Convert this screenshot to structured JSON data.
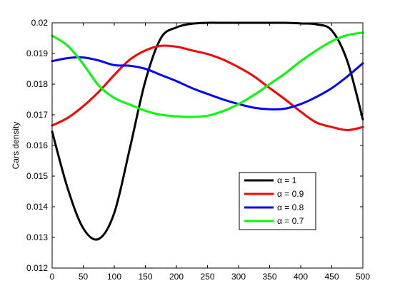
{
  "chart_data": {
    "type": "line",
    "title": "",
    "xlabel": "",
    "ylabel": "Cars density",
    "xlim": [
      0,
      500
    ],
    "ylim": [
      0.012,
      0.02
    ],
    "x_ticks": [
      0,
      50,
      100,
      150,
      200,
      250,
      300,
      350,
      400,
      450,
      500
    ],
    "x_tick_labels": [
      "0",
      "50",
      "100",
      "150",
      "200",
      "250",
      "300",
      "350",
      "400",
      "450",
      "500"
    ],
    "y_ticks": [
      0.012,
      0.013,
      0.014,
      0.015,
      0.016,
      0.017,
      0.018,
      0.019,
      0.02
    ],
    "y_tick_labels": [
      "0.012",
      "0.013",
      "0.014",
      "0.015",
      "0.016",
      "0.017",
      "0.018",
      "0.019",
      "0.02"
    ],
    "grid": false,
    "legend_position": "center-right",
    "x": [
      0,
      25,
      50,
      75,
      100,
      125,
      150,
      175,
      200,
      225,
      250,
      275,
      300,
      325,
      350,
      375,
      400,
      425,
      450,
      475,
      500
    ],
    "series": [
      {
        "name": "α = 1",
        "color": "#000000",
        "values": [
          0.01645,
          0.0146,
          0.0133,
          0.01295,
          0.0138,
          0.0159,
          0.0181,
          0.0195,
          0.01985,
          0.01997,
          0.02,
          0.02,
          0.02,
          0.02,
          0.02,
          0.02,
          0.01998,
          0.01995,
          0.01975,
          0.01875,
          0.01685
        ]
      },
      {
        "name": "α = 0.9",
        "color": "#ff0000",
        "values": [
          0.01665,
          0.0169,
          0.01728,
          0.01775,
          0.0183,
          0.0188,
          0.0191,
          0.01925,
          0.01922,
          0.0191,
          0.01898,
          0.0188,
          0.01855,
          0.01825,
          0.01787,
          0.0175,
          0.0171,
          0.01675,
          0.0166,
          0.0165,
          0.0166
        ]
      },
      {
        "name": "α = 0.8",
        "color": "#0000ff",
        "values": [
          0.01875,
          0.01885,
          0.01887,
          0.01877,
          0.01862,
          0.0186,
          0.0185,
          0.0183,
          0.0181,
          0.01787,
          0.01768,
          0.0175,
          0.01735,
          0.01723,
          0.01718,
          0.0172,
          0.01735,
          0.01758,
          0.01787,
          0.01825,
          0.01868
        ]
      },
      {
        "name": "α = 0.7",
        "color": "#00ff00",
        "values": [
          0.01958,
          0.01925,
          0.01865,
          0.01795,
          0.01755,
          0.01733,
          0.01713,
          0.017,
          0.01695,
          0.01693,
          0.01697,
          0.01712,
          0.01735,
          0.01765,
          0.018,
          0.01835,
          0.01875,
          0.0191,
          0.0194,
          0.0196,
          0.01968
        ]
      }
    ]
  }
}
